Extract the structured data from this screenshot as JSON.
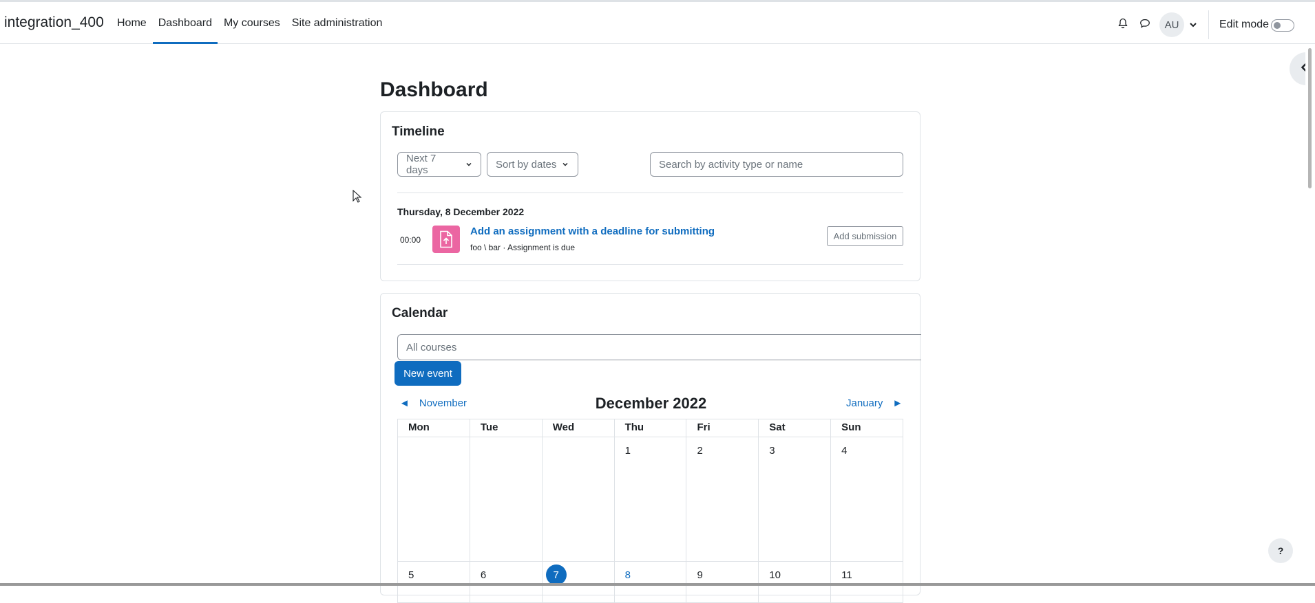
{
  "site_name": "integration_400",
  "nav": {
    "items": [
      {
        "label": "Home"
      },
      {
        "label": "Dashboard"
      },
      {
        "label": "My courses"
      },
      {
        "label": "Site administration"
      }
    ],
    "active": "Dashboard",
    "user_initials": "AU",
    "edit_mode_label": "Edit mode",
    "edit_mode_on": false
  },
  "page_title": "Dashboard",
  "timeline": {
    "title": "Timeline",
    "filter_days": "Next 7 days",
    "sort": "Sort by dates",
    "search_placeholder": "Search by activity type or name",
    "date": "Thursday, 8 December 2022",
    "event": {
      "time": "00:00",
      "name": "Add an assignment with a deadline for submitting",
      "meta": "foo \\ bar · Assignment is due",
      "action": "Add submission"
    }
  },
  "calendar": {
    "title": "Calendar",
    "course_filter": "All courses",
    "new_event": "New event",
    "prev_month": "November",
    "next_month": "January",
    "month": "December 2022",
    "weekdays": [
      "Mon",
      "Tue",
      "Wed",
      "Thu",
      "Fri",
      "Sat",
      "Sun"
    ],
    "weeks": [
      [
        "",
        "",
        "",
        "1",
        "2",
        "3",
        "4"
      ],
      [
        "5",
        "6",
        "7",
        "8",
        "9",
        "10",
        "11"
      ]
    ],
    "today": "7",
    "event_day": "8"
  },
  "help_label": "?",
  "icons": {
    "bell": "bell-icon",
    "chat": "chat-icon",
    "caret": "chevron-down-icon",
    "drawer": "chevron-left-icon",
    "assignment": "file-upload-icon",
    "prev": "triangle-left-icon",
    "next": "triangle-right-icon"
  },
  "colors": {
    "accent": "#0f6cbf",
    "assignment_icon_bg": "#eb66a2"
  }
}
